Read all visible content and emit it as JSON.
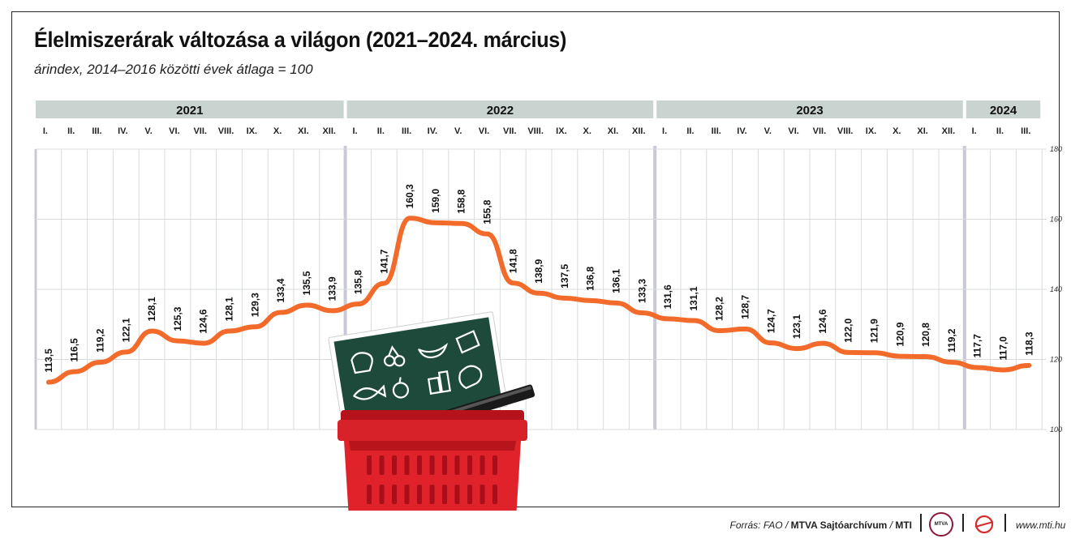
{
  "header": {
    "title": "Élelmiszerárak változása a világon (2021–2024. március)",
    "subtitle": "árindex, 2014–2016 közötti évek átlaga = 100"
  },
  "colors": {
    "line": "#f26b2a",
    "year_band": "#c9d3cf",
    "grid": "#d9dcdb",
    "divider": "#c8c8d8"
  },
  "icons": [
    "basket-icon",
    "food-board-icon",
    "mtva-logo-icon",
    "mti-logo-icon"
  ],
  "chart_data": {
    "type": "line",
    "title": "Élelmiszerárak változása a világon (2021–2024. március)",
    "subtitle": "árindex, 2014–2016 közötti évek átlaga = 100",
    "years": [
      {
        "label": "2021",
        "months": 12
      },
      {
        "label": "2022",
        "months": 12
      },
      {
        "label": "2023",
        "months": 12
      },
      {
        "label": "2024",
        "months": 3
      }
    ],
    "month_labels": [
      "I.",
      "II.",
      "III.",
      "IV.",
      "V.",
      "VI.",
      "VII.",
      "VIII.",
      "IX.",
      "X.",
      "XI.",
      "XII."
    ],
    "values": [
      113.5,
      116.5,
      119.2,
      122.1,
      128.1,
      125.3,
      124.6,
      128.1,
      129.3,
      133.4,
      135.5,
      133.9,
      135.8,
      141.7,
      160.3,
      159.0,
      158.8,
      155.8,
      141.8,
      138.9,
      137.5,
      136.8,
      136.1,
      133.3,
      131.6,
      131.1,
      128.2,
      128.7,
      124.7,
      123.1,
      124.6,
      122.0,
      121.9,
      120.9,
      120.8,
      119.2,
      117.7,
      117.0,
      118.3
    ],
    "value_labels": [
      "113,5",
      "116,5",
      "119,2",
      "122,1",
      "128,1",
      "125,3",
      "124,6",
      "128,1",
      "129,3",
      "133,4",
      "135,5",
      "133,9",
      "135,8",
      "141,7",
      "160,3",
      "159,0",
      "158,8",
      "155,8",
      "141,8",
      "138,9",
      "137,5",
      "136,8",
      "136,1",
      "133,3",
      "131,6",
      "131,1",
      "128,2",
      "128,7",
      "124,7",
      "123,1",
      "124,6",
      "122,0",
      "121,9",
      "120,9",
      "120,8",
      "119,2",
      "117,7",
      "117,0",
      "118,3"
    ],
    "yticks": [
      100,
      120,
      140,
      160,
      180
    ],
    "ylim": [
      100,
      180
    ],
    "grid": true,
    "legend": "none"
  },
  "footer": {
    "source_prefix": "Forrás: FAO / ",
    "source_org": "MTVA Sajtóarchívum",
    "source_sep": " / ",
    "source_mti": "MTI",
    "mtva_logo_text": "MTVA",
    "website": "www.mti.hu"
  }
}
